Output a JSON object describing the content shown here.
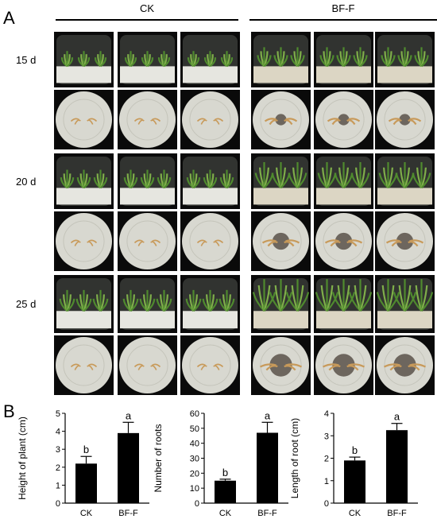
{
  "panel_a": {
    "letter": "A",
    "groups": [
      "CK",
      "BF-F"
    ],
    "timepoints": [
      "15 d",
      "20 d",
      "25 d"
    ],
    "photos_per_group": 3,
    "views": [
      "side",
      "bottom"
    ]
  },
  "panel_b": {
    "letter": "B"
  },
  "chart_data": [
    {
      "type": "bar",
      "categories": [
        "CK",
        "BF-F"
      ],
      "values": [
        2.2,
        3.9
      ],
      "errors": [
        0.4,
        0.6
      ],
      "significance": [
        "b",
        "a"
      ],
      "title": "",
      "xlabel": "",
      "ylabel": "Height of plant (cm)",
      "ylim": [
        0,
        5
      ],
      "yticks": [
        0,
        1,
        2,
        3,
        4,
        5
      ],
      "grid": false
    },
    {
      "type": "bar",
      "categories": [
        "CK",
        "BF-F"
      ],
      "values": [
        15,
        47
      ],
      "errors": [
        1,
        7
      ],
      "significance": [
        "b",
        "a"
      ],
      "title": "",
      "xlabel": "",
      "ylabel": "Number of roots",
      "ylim": [
        0,
        60
      ],
      "yticks": [
        0,
        10,
        20,
        30,
        40,
        50,
        60
      ],
      "grid": false
    },
    {
      "type": "bar",
      "categories": [
        "CK",
        "BF-F"
      ],
      "values": [
        1.9,
        3.25
      ],
      "errors": [
        0.15,
        0.3
      ],
      "significance": [
        "b",
        "a"
      ],
      "title": "",
      "xlabel": "",
      "ylabel": "Length of root (cm)",
      "ylim": [
        0,
        4
      ],
      "yticks": [
        0,
        1,
        2,
        3,
        4
      ],
      "grid": false
    }
  ]
}
